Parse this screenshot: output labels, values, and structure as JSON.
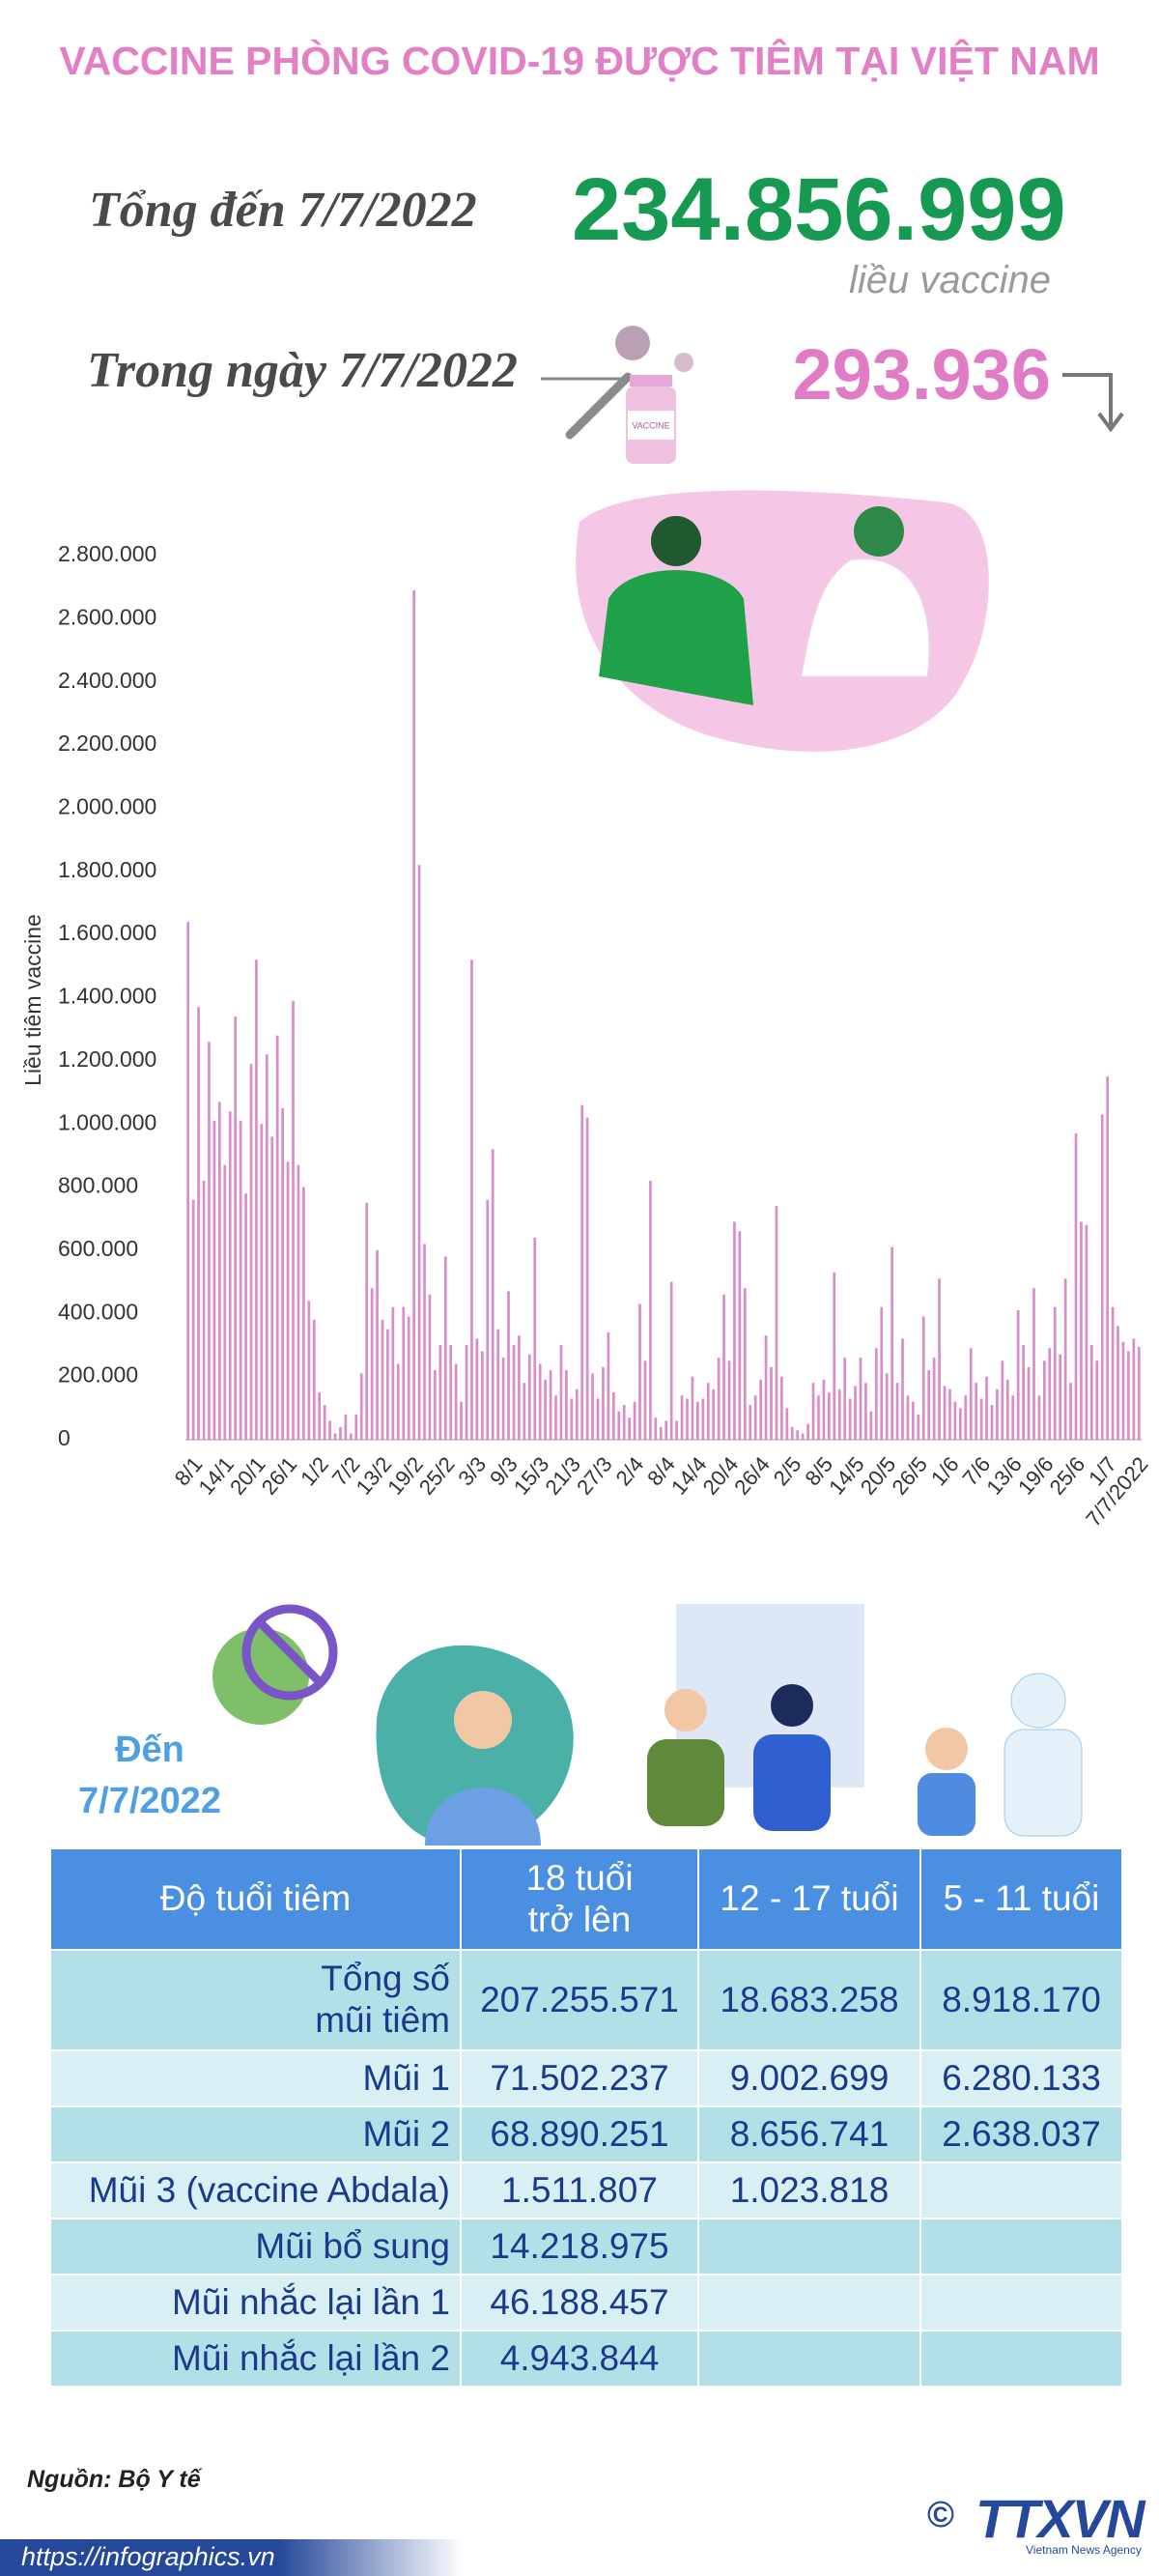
{
  "title": "VACCINE PHÒNG COVID-19 ĐƯỢC TIÊM TẠI VIỆT NAM",
  "summary": {
    "total_label": "Tổng đến 7/7/2022",
    "total_value": "234.856.999",
    "total_unit": "liều vaccine",
    "day_label": "Trong ngày 7/7/2022",
    "day_value": "293.936",
    "vial_label": "VACCINE"
  },
  "chart_data": {
    "type": "bar",
    "y_label": "Liều tiêm vaccine",
    "color": "#d98cc9",
    "ylim": [
      0,
      2800000
    ],
    "yticks": [
      0,
      {
        "value": 200000,
        "label": "200.000"
      },
      {
        "value": 400000,
        "label": "400.000"
      },
      {
        "value": 600000,
        "label": "600.000"
      },
      {
        "value": 800000,
        "label": "800.000"
      },
      {
        "value": 1000000,
        "label": "1.000.000"
      },
      {
        "value": 1200000,
        "label": "1.200.000"
      },
      {
        "value": 1400000,
        "label": "1.400.000"
      },
      {
        "value": 1600000,
        "label": "1.600.000"
      },
      {
        "value": 1800000,
        "label": "1.800.000"
      },
      {
        "value": 2000000,
        "label": "2.000.000"
      },
      {
        "value": 2200000,
        "label": "2.200.000"
      },
      {
        "value": 2400000,
        "label": "2.400.000"
      },
      {
        "value": 2600000,
        "label": "2.600.000"
      },
      {
        "value": 2800000,
        "label": "2.800.000"
      }
    ],
    "categories": [
      null,
      "8/1",
      null,
      null,
      null,
      null,
      null,
      "14/1",
      null,
      null,
      null,
      null,
      null,
      "20/1",
      null,
      null,
      null,
      null,
      null,
      "26/1",
      null,
      null,
      null,
      null,
      null,
      "1/2",
      null,
      null,
      null,
      null,
      null,
      "7/2",
      null,
      null,
      null,
      null,
      null,
      "13/2",
      null,
      null,
      null,
      null,
      null,
      "19/2",
      null,
      null,
      null,
      null,
      null,
      "25/2",
      null,
      null,
      null,
      null,
      null,
      "3/3",
      null,
      null,
      null,
      null,
      null,
      "9/3",
      null,
      null,
      null,
      null,
      null,
      "15/3",
      null,
      null,
      null,
      null,
      null,
      "21/3",
      null,
      null,
      null,
      null,
      null,
      "27/3",
      null,
      null,
      null,
      null,
      null,
      "2/4",
      null,
      null,
      null,
      null,
      null,
      "8/4",
      null,
      null,
      null,
      null,
      null,
      "14/4",
      null,
      null,
      null,
      null,
      null,
      "20/4",
      null,
      null,
      null,
      null,
      null,
      "26/4",
      null,
      null,
      null,
      null,
      null,
      "2/5",
      null,
      null,
      null,
      null,
      null,
      "8/5",
      null,
      null,
      null,
      null,
      null,
      "14/5",
      null,
      null,
      null,
      null,
      null,
      "20/5",
      null,
      null,
      null,
      null,
      null,
      "26/5",
      null,
      null,
      null,
      null,
      null,
      "1/6",
      null,
      null,
      null,
      null,
      null,
      "7/6",
      null,
      null,
      null,
      null,
      null,
      "13/6",
      null,
      null,
      null,
      null,
      null,
      "19/6",
      null,
      null,
      null,
      null,
      null,
      "25/6",
      null,
      null,
      null,
      null,
      null,
      "1/7",
      null,
      null,
      null,
      null,
      null,
      "7/7/2022"
    ],
    "values": [
      1640000,
      760000,
      1370000,
      820000,
      1260000,
      1010000,
      1070000,
      870000,
      1040000,
      1340000,
      1010000,
      780000,
      1190000,
      1520000,
      1000000,
      1220000,
      960000,
      1280000,
      1050000,
      880000,
      1390000,
      870000,
      800000,
      440000,
      380000,
      150000,
      110000,
      60000,
      20000,
      40000,
      80000,
      20000,
      80000,
      210000,
      750000,
      480000,
      600000,
      380000,
      350000,
      420000,
      240000,
      420000,
      390000,
      2690000,
      1820000,
      620000,
      460000,
      220000,
      300000,
      580000,
      300000,
      240000,
      120000,
      300000,
      1520000,
      320000,
      280000,
      760000,
      920000,
      350000,
      260000,
      470000,
      300000,
      330000,
      180000,
      270000,
      640000,
      240000,
      190000,
      220000,
      140000,
      300000,
      220000,
      130000,
      160000,
      1060000,
      1020000,
      210000,
      130000,
      230000,
      340000,
      150000,
      90000,
      110000,
      70000,
      120000,
      430000,
      250000,
      820000,
      70000,
      40000,
      60000,
      500000,
      60000,
      140000,
      130000,
      200000,
      120000,
      130000,
      180000,
      160000,
      260000,
      460000,
      250000,
      690000,
      660000,
      480000,
      110000,
      140000,
      190000,
      330000,
      230000,
      740000,
      200000,
      100000,
      40000,
      30000,
      20000,
      50000,
      180000,
      140000,
      190000,
      150000,
      530000,
      160000,
      260000,
      130000,
      170000,
      260000,
      180000,
      90000,
      290000,
      420000,
      210000,
      610000,
      180000,
      320000,
      140000,
      120000,
      80000,
      390000,
      220000,
      260000,
      510000,
      170000,
      160000,
      120000,
      100000,
      140000,
      290000,
      180000,
      130000,
      200000,
      110000,
      160000,
      250000,
      190000,
      140000,
      410000,
      300000,
      230000,
      480000,
      140000,
      250000,
      290000,
      420000,
      270000,
      510000,
      180000,
      970000,
      690000,
      680000,
      300000,
      250000,
      1030000,
      1150000,
      420000,
      360000,
      310000,
      280000,
      320000,
      293936
    ]
  },
  "table": {
    "date_label": "Đến\n7/7/2022",
    "header": [
      "Độ tuổi tiêm",
      "18 tuổi\ntrở lên",
      "12 - 17 tuổi",
      "5 - 11 tuổi"
    ],
    "rows": [
      [
        "Tổng số\nmũi tiêm",
        "207.255.571",
        "18.683.258",
        "8.918.170"
      ],
      [
        "Mũi 1",
        "71.502.237",
        "9.002.699",
        "6.280.133"
      ],
      [
        "Mũi 2",
        "68.890.251",
        "8.656.741",
        "2.638.037"
      ],
      [
        "Mũi 3 (vaccine Abdala)",
        "1.511.807",
        "1.023.818"
      ],
      [
        "Mũi bổ sung",
        "14.218.975"
      ],
      [
        "Mũi nhắc lại lần 1",
        "46.188.457"
      ],
      [
        "Mũi nhắc lại lần 2",
        "4.943.844"
      ]
    ]
  },
  "footer": {
    "source": "Nguồn: Bộ Y tế",
    "url": "https://infographics.vn",
    "copyright": "©",
    "logo": "TTXVN",
    "logo_sub": "Vietnam News Agency"
  }
}
